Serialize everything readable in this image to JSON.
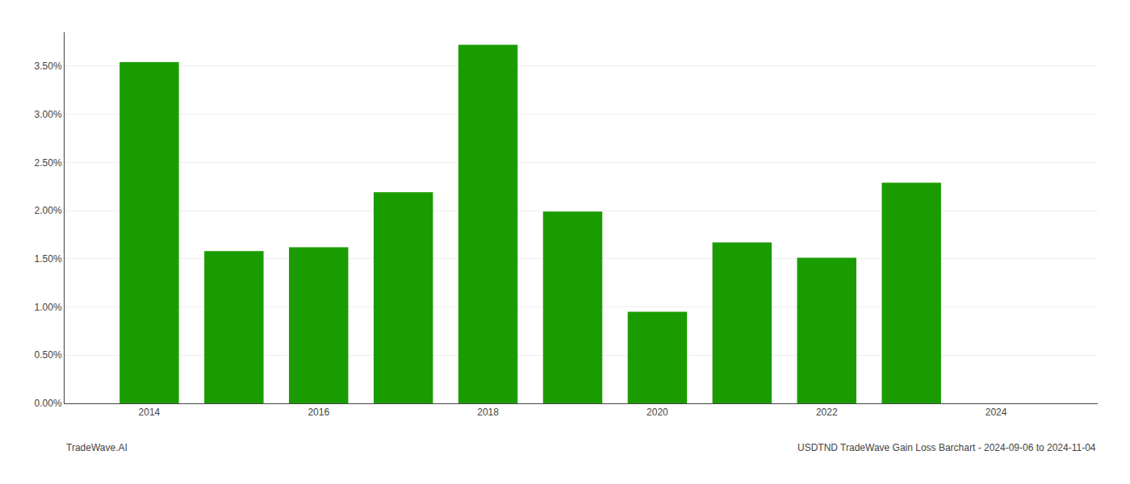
{
  "chart_data": {
    "type": "bar",
    "x": [
      2014,
      2015,
      2016,
      2017,
      2018,
      2019,
      2020,
      2021,
      2022,
      2023
    ],
    "values": [
      0.0354,
      0.0158,
      0.0162,
      0.0219,
      0.0372,
      0.0199,
      0.0095,
      0.0167,
      0.0151,
      0.0229
    ],
    "color": "#1a9c00",
    "xlim": [
      2013.0,
      2025.2
    ],
    "xticks": [
      2014,
      2016,
      2018,
      2020,
      2022,
      2024
    ],
    "ylim": [
      0,
      0.0385
    ],
    "yticks": [
      {
        "value": 0.0,
        "label": "0.00%"
      },
      {
        "value": 0.005,
        "label": "0.50%"
      },
      {
        "value": 0.01,
        "label": "1.00%"
      },
      {
        "value": 0.015,
        "label": "1.50%"
      },
      {
        "value": 0.02,
        "label": "2.00%"
      },
      {
        "value": 0.025,
        "label": "2.50%"
      },
      {
        "value": 0.03,
        "label": "3.00%"
      },
      {
        "value": 0.035,
        "label": "3.50%"
      }
    ],
    "grid": true,
    "annotations": [
      "TradeWave.AI",
      "USDTND TradeWave Gain Loss Barchart - 2024-09-06 to 2024-11-04"
    ]
  }
}
